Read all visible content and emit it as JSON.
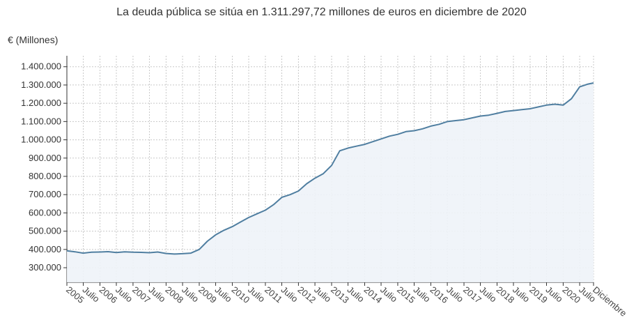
{
  "chart_data": {
    "type": "area",
    "title": "La deuda pública se sitúa en 1.311.297,72 millones de euros en diciembre de 2020",
    "ylabel": "€ (Millones)",
    "xlabel": "",
    "ylim": [
      220000,
      1460000
    ],
    "grid": true,
    "colors": {
      "line": "#4f7ea0",
      "fill": "#eef3f8",
      "grid": "#c8c8c8"
    },
    "y_ticks": [
      {
        "value": 300000,
        "label": "300.000"
      },
      {
        "value": 400000,
        "label": "400.000"
      },
      {
        "value": 500000,
        "label": "500.000"
      },
      {
        "value": 600000,
        "label": "600.000"
      },
      {
        "value": 700000,
        "label": "700.000"
      },
      {
        "value": 800000,
        "label": "800.000"
      },
      {
        "value": 900000,
        "label": "900.000"
      },
      {
        "value": 1000000,
        "label": "1.000.000"
      },
      {
        "value": 1100000,
        "label": "1.100.000"
      },
      {
        "value": 1200000,
        "label": "1.200.000"
      },
      {
        "value": 1300000,
        "label": "1.300.000"
      },
      {
        "value": 1400000,
        "label": "1.400.000"
      }
    ],
    "x_ticks": [
      {
        "date": "2005-01",
        "label": "2005"
      },
      {
        "date": "2005-07",
        "label": "Julio"
      },
      {
        "date": "2006-01",
        "label": "2006"
      },
      {
        "date": "2006-07",
        "label": "Julio"
      },
      {
        "date": "2007-01",
        "label": "2007"
      },
      {
        "date": "2007-07",
        "label": "Julio"
      },
      {
        "date": "2008-01",
        "label": "2008"
      },
      {
        "date": "2008-07",
        "label": "Julio"
      },
      {
        "date": "2009-01",
        "label": "2009"
      },
      {
        "date": "2009-07",
        "label": "Julio"
      },
      {
        "date": "2010-01",
        "label": "2010"
      },
      {
        "date": "2010-07",
        "label": "Julio"
      },
      {
        "date": "2011-01",
        "label": "2011"
      },
      {
        "date": "2011-07",
        "label": "Julio"
      },
      {
        "date": "2012-01",
        "label": "2012"
      },
      {
        "date": "2012-07",
        "label": "Julio"
      },
      {
        "date": "2013-01",
        "label": "2013"
      },
      {
        "date": "2013-07",
        "label": "Julio"
      },
      {
        "date": "2014-01",
        "label": "2014"
      },
      {
        "date": "2014-07",
        "label": "Julio"
      },
      {
        "date": "2015-01",
        "label": "2015"
      },
      {
        "date": "2015-07",
        "label": "Julio"
      },
      {
        "date": "2016-01",
        "label": "2016"
      },
      {
        "date": "2016-07",
        "label": "Julio"
      },
      {
        "date": "2017-01",
        "label": "2017"
      },
      {
        "date": "2017-07",
        "label": "Julio"
      },
      {
        "date": "2018-01",
        "label": "2018"
      },
      {
        "date": "2018-07",
        "label": "Julio"
      },
      {
        "date": "2019-01",
        "label": "2019"
      },
      {
        "date": "2019-07",
        "label": "Julio"
      },
      {
        "date": "2020-01",
        "label": "2020"
      },
      {
        "date": "2020-07",
        "label": "Julio"
      },
      {
        "date": "2020-12",
        "label": "Diciembre"
      }
    ],
    "series": [
      {
        "x": [
          "2005-01",
          "2005-04",
          "2005-07",
          "2005-10",
          "2006-01",
          "2006-04",
          "2006-07",
          "2006-10",
          "2007-01",
          "2007-04",
          "2007-07",
          "2007-10",
          "2008-01",
          "2008-04",
          "2008-07",
          "2008-10",
          "2009-01",
          "2009-04",
          "2009-07",
          "2009-10",
          "2010-01",
          "2010-04",
          "2010-07",
          "2010-10",
          "2011-01",
          "2011-04",
          "2011-07",
          "2011-10",
          "2012-01",
          "2012-04",
          "2012-07",
          "2012-10",
          "2013-01",
          "2013-04",
          "2013-07",
          "2013-10",
          "2014-01",
          "2014-04",
          "2014-07",
          "2014-10",
          "2015-01",
          "2015-04",
          "2015-07",
          "2015-10",
          "2016-01",
          "2016-04",
          "2016-07",
          "2016-10",
          "2017-01",
          "2017-04",
          "2017-07",
          "2017-10",
          "2018-01",
          "2018-04",
          "2018-07",
          "2018-10",
          "2019-01",
          "2019-04",
          "2019-07",
          "2019-10",
          "2020-01",
          "2020-04",
          "2020-07",
          "2020-10",
          "2020-12"
        ],
        "values": [
          393000,
          387000,
          380000,
          385000,
          386000,
          388000,
          383000,
          387000,
          385000,
          384000,
          382000,
          386000,
          378000,
          375000,
          377000,
          380000,
          400000,
          445000,
          480000,
          505000,
          525000,
          550000,
          575000,
          595000,
          615000,
          645000,
          685000,
          700000,
          720000,
          760000,
          790000,
          815000,
          860000,
          940000,
          955000,
          965000,
          975000,
          990000,
          1005000,
          1020000,
          1030000,
          1045000,
          1050000,
          1060000,
          1075000,
          1085000,
          1100000,
          1105000,
          1110000,
          1120000,
          1130000,
          1135000,
          1145000,
          1155000,
          1160000,
          1165000,
          1170000,
          1180000,
          1190000,
          1195000,
          1190000,
          1225000,
          1290000,
          1305000,
          1311298
        ]
      }
    ]
  }
}
